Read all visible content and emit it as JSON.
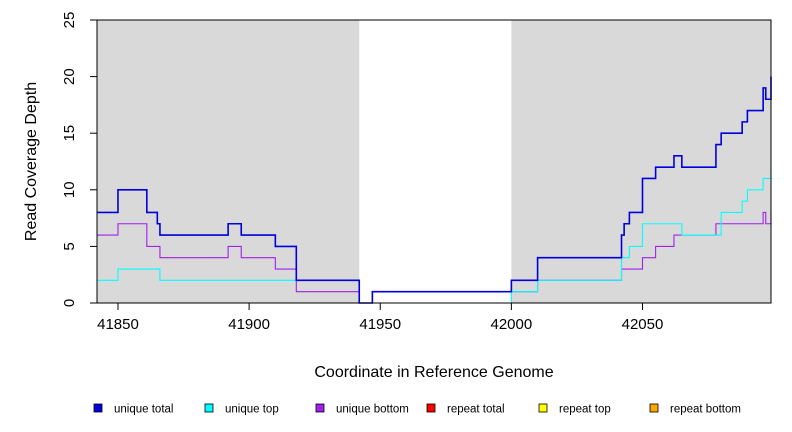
{
  "chart_data": {
    "type": "line",
    "step": true,
    "xlabel": "Coordinate in Reference Genome",
    "ylabel": "Read Coverage Depth",
    "xlim": [
      41842,
      42099
    ],
    "ylim": [
      0,
      25
    ],
    "x_ticks": [
      41850,
      41900,
      41950,
      42000,
      42050
    ],
    "y_ticks": [
      0,
      5,
      10,
      15,
      20,
      25
    ],
    "shaded_regions": [
      [
        41842,
        41942
      ],
      [
        42000,
        42099
      ]
    ],
    "shade_color": "#d9d9d9",
    "legend_position": "bottom",
    "series": [
      {
        "name": "unique total",
        "color": "#0000dd",
        "points": [
          [
            41842,
            8
          ],
          [
            41850,
            10
          ],
          [
            41861,
            8
          ],
          [
            41865,
            7
          ],
          [
            41866,
            6
          ],
          [
            41892,
            7
          ],
          [
            41897,
            6
          ],
          [
            41910,
            5
          ],
          [
            41918,
            2
          ],
          [
            41942,
            0
          ],
          [
            41947,
            1
          ],
          [
            42000,
            2
          ],
          [
            42010,
            4
          ],
          [
            42042,
            6
          ],
          [
            42043,
            7
          ],
          [
            42045,
            8
          ],
          [
            42050,
            11
          ],
          [
            42055,
            12
          ],
          [
            42062,
            13
          ],
          [
            42065,
            12
          ],
          [
            42078,
            14
          ],
          [
            42080,
            15
          ],
          [
            42088,
            16
          ],
          [
            42090,
            17
          ],
          [
            42096,
            19
          ],
          [
            42097,
            18
          ],
          [
            42099,
            20
          ]
        ]
      },
      {
        "name": "unique top",
        "color": "#00ffff",
        "points": [
          [
            41842,
            2
          ],
          [
            41850,
            3
          ],
          [
            41866,
            2
          ],
          [
            41942,
            0
          ],
          [
            41947,
            0
          ],
          [
            42000,
            1
          ],
          [
            42010,
            2
          ],
          [
            42042,
            4
          ],
          [
            42045,
            5
          ],
          [
            42050,
            7
          ],
          [
            42065,
            6
          ],
          [
            42080,
            8
          ],
          [
            42088,
            9
          ],
          [
            42090,
            10
          ],
          [
            42096,
            11
          ],
          [
            42099,
            12
          ]
        ]
      },
      {
        "name": "unique bottom",
        "color": "#a020f0",
        "points": [
          [
            41842,
            6
          ],
          [
            41850,
            7
          ],
          [
            41861,
            5
          ],
          [
            41866,
            4
          ],
          [
            41892,
            5
          ],
          [
            41897,
            4
          ],
          [
            41910,
            3
          ],
          [
            41918,
            1
          ],
          [
            41942,
            0
          ],
          [
            41947,
            1
          ],
          [
            42000,
            1
          ],
          [
            42010,
            2
          ],
          [
            42042,
            3
          ],
          [
            42050,
            4
          ],
          [
            42055,
            5
          ],
          [
            42062,
            6
          ],
          [
            42078,
            7
          ],
          [
            42096,
            8
          ],
          [
            42097,
            7
          ],
          [
            42099,
            8
          ]
        ]
      },
      {
        "name": "repeat total",
        "color": "#ff0000",
        "points": [
          [
            41842,
            0
          ],
          [
            42099,
            0
          ]
        ]
      },
      {
        "name": "repeat top",
        "color": "#ffff00",
        "points": [
          [
            41842,
            0
          ],
          [
            42099,
            0
          ]
        ]
      },
      {
        "name": "repeat bottom",
        "color": "#ffa500",
        "points": [
          [
            41842,
            0
          ],
          [
            42099,
            0
          ]
        ]
      }
    ]
  }
}
